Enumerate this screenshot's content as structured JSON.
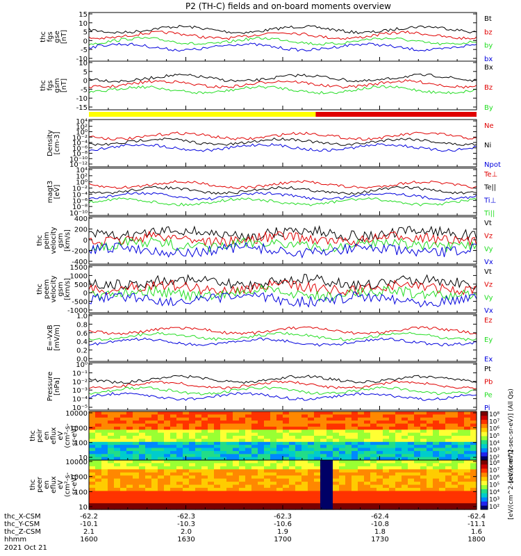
{
  "title": "P2 (TH-C) fields and on-board moments overview",
  "colors": {
    "black": "#000000",
    "red": "#e00000",
    "green": "#22dd22",
    "blue": "#0000dd",
    "yellow": "#ffff00"
  },
  "status_bar": {
    "colors": [
      "#ffff00",
      "#e00000"
    ],
    "split_fraction": 0.585
  },
  "chart_data": [
    {
      "type": "line",
      "panel": "fgs_gse",
      "ylabel": [
        "thc",
        "fgs",
        "gse",
        "[nT]"
      ],
      "yticks": [
        "15",
        "10",
        "5",
        "0",
        "-5",
        "-10"
      ],
      "ylim": [
        -12,
        16
      ],
      "legend": [
        {
          "text": "Bt",
          "color": "#000000"
        },
        {
          "text": "bz",
          "color": "#e00000"
        },
        {
          "text": "by",
          "color": "#22dd22"
        },
        {
          "text": "bx",
          "color": "#0000dd"
        }
      ]
    },
    {
      "type": "line",
      "panel": "fgs_gsm",
      "ylabel": [
        "thc",
        "fgs",
        "gsm",
        "[nT]"
      ],
      "yticks": [
        "10",
        "5",
        "0",
        "-5",
        "-10",
        "-15"
      ],
      "ylim": [
        -18,
        12
      ],
      "legend": [
        {
          "text": "Bx",
          "color": "#000000"
        },
        {
          "text": "Bz",
          "color": "#e00000"
        },
        {
          "text": "By",
          "color": "#22dd22"
        }
      ]
    },
    {
      "type": "line",
      "panel": "density",
      "ylabel": [
        "Density",
        "[cm-3]"
      ],
      "yticks": [
        "10⁴",
        "10²",
        "10⁰",
        "10⁻²",
        "10⁻⁴",
        "10⁻⁶",
        "10⁻⁸",
        "10⁻¹⁰",
        "10⁻¹²"
      ],
      "log": true,
      "legend": [
        {
          "text": "Ne",
          "color": "#e00000"
        },
        {
          "text": "Ni",
          "color": "#000000"
        },
        {
          "text": "Npot",
          "color": "#0000dd"
        }
      ]
    },
    {
      "type": "line",
      "panel": "temperature",
      "ylabel": [
        "magt3",
        "[eV]"
      ],
      "yticks": [
        "10⁴",
        "10²",
        "10⁰",
        "10⁻²",
        "10⁻⁴",
        "10⁻⁶",
        "10⁻⁸",
        "10⁻¹⁰"
      ],
      "log": true,
      "legend": [
        {
          "text": "Te⊥",
          "color": "#e00000"
        },
        {
          "text": "Te||",
          "color": "#000000"
        },
        {
          "text": "Ti⊥",
          "color": "#0000dd"
        },
        {
          "text": "Ti||",
          "color": "#22dd22"
        }
      ]
    },
    {
      "type": "line",
      "panel": "peim_velocity",
      "ylabel": [
        "thc",
        "peim",
        "velocity",
        "gsm",
        "[km/s]"
      ],
      "yticks": [
        "400",
        "200",
        "0",
        "-200",
        "-400"
      ],
      "ylim": [
        -430,
        430
      ],
      "legend": [
        {
          "text": "Vt",
          "color": "#000000"
        },
        {
          "text": "Vz",
          "color": "#e00000"
        },
        {
          "text": "Vy",
          "color": "#22dd22"
        },
        {
          "text": "Vx",
          "color": "#0000dd"
        }
      ]
    },
    {
      "type": "line",
      "panel": "peem_velocity",
      "ylabel": [
        "thc",
        "peem",
        "velocity",
        "gsm",
        "[km/s]"
      ],
      "yticks": [
        "1500",
        "1000",
        "500",
        "0",
        "-500",
        "-1000"
      ],
      "ylim": [
        -1050,
        1550
      ],
      "legend": [
        {
          "text": "Vt",
          "color": "#000000"
        },
        {
          "text": "Vz",
          "color": "#e00000"
        },
        {
          "text": "Vy",
          "color": "#22dd22"
        },
        {
          "text": "Vx",
          "color": "#0000dd"
        }
      ]
    },
    {
      "type": "line",
      "panel": "efield",
      "ylabel": [
        "E=-VxB",
        "[mV/m]"
      ],
      "yticks": [
        "1.0",
        "0.8",
        "0.6",
        "0.4",
        "0.2",
        "0.0"
      ],
      "ylim": [
        0,
        1
      ],
      "legend": [
        {
          "text": "Ez",
          "color": "#e00000"
        },
        {
          "text": "Ey",
          "color": "#22dd22"
        },
        {
          "text": "Ex",
          "color": "#0000dd"
        }
      ]
    },
    {
      "type": "line",
      "panel": "pressure",
      "ylabel": [
        "Pressure",
        "[nPa]"
      ],
      "yticks": [
        "10⁰",
        "10⁻¹",
        "10⁻²",
        "10⁻³",
        "10⁻⁴",
        "10⁻⁵"
      ],
      "log": true,
      "legend": [
        {
          "text": "Pt",
          "color": "#000000"
        },
        {
          "text": "Pb",
          "color": "#e00000"
        },
        {
          "text": "Pe",
          "color": "#22dd22"
        },
        {
          "text": "Pi",
          "color": "#0000dd"
        }
      ]
    },
    {
      "type": "heatmap",
      "panel": "peir_eflux",
      "ylabel": [
        "thc",
        "peir",
        "en",
        "eflux",
        "eV",
        "(cm²-s-",
        "sr-eV)"
      ],
      "yticks": [
        "10000",
        "1000",
        "100",
        "10"
      ]
    },
    {
      "type": "heatmap",
      "panel": "peer_eflux",
      "ylabel": [
        "thc",
        "peer",
        "en",
        "eflux",
        "eV",
        "(cm²-s-",
        "sr-eV)"
      ],
      "yticks": [
        "10000",
        "1000",
        "100",
        "10"
      ]
    }
  ],
  "colorbar": {
    "ticks_top": [
      "10⁸",
      "10⁷",
      "10⁶",
      "10⁵",
      "10⁴",
      "10³",
      "10²"
    ],
    "ticks_bottom": [
      "10⁸",
      "10⁷",
      "10⁶",
      "10⁵",
      "10⁴",
      "10³",
      "10²"
    ],
    "label_top": "[eV/(cm^2-sec-sr-eV)] (All Qs)",
    "label_bottom": "[eV/(cm^2-sec-sr-eV)]"
  },
  "x_axis": {
    "rows": [
      {
        "label": "thc_X-CSM",
        "values": [
          "-62.2",
          "-62.3",
          "-62.3",
          "-62.4",
          "-62.4"
        ]
      },
      {
        "label": "thc_Y-CSM",
        "values": [
          "-10.1",
          "-10.3",
          "-10.6",
          "-10.8",
          "-11.1"
        ]
      },
      {
        "label": "thc_Z-CSM",
        "values": [
          "2.1",
          "2.0",
          "1.9",
          "1.8",
          "1.6"
        ]
      },
      {
        "label": "hhmm",
        "values": [
          "1600",
          "1630",
          "1700",
          "1730",
          "1800"
        ]
      }
    ],
    "date": "2021 Oct 21"
  }
}
